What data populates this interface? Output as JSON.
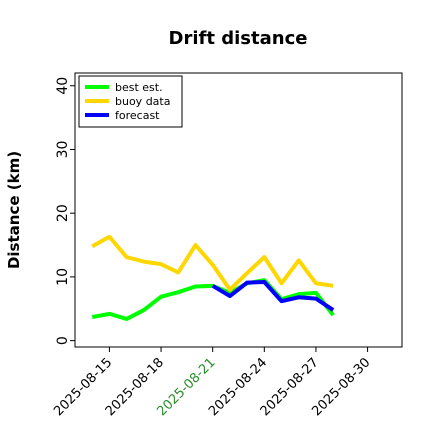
{
  "chart_data": {
    "type": "line",
    "title": "Drift distance",
    "xlabel": "",
    "ylabel": "Distance (km)",
    "xlim": [
      "2025-08-13",
      "2025-09-01"
    ],
    "ylim": [
      -1,
      42
    ],
    "y_ticks": [
      0,
      10,
      20,
      30,
      40
    ],
    "x_tick_labels": [
      "2025-08-15",
      "2025-08-18",
      "2025-08-21",
      "2025-08-24",
      "2025-08-27",
      "2025-08-30"
    ],
    "highlighted_tick": "2025-08-21",
    "highlight_color": "#2a8a2a",
    "grid": false,
    "legend_position": "top-left",
    "series": [
      {
        "name": "best est.",
        "color": "#00ff00",
        "points": [
          [
            "2025-08-14",
            3.7
          ],
          [
            "2025-08-15",
            4.2
          ],
          [
            "2025-08-16",
            3.4
          ],
          [
            "2025-08-17",
            4.8
          ],
          [
            "2025-08-18",
            6.9
          ],
          [
            "2025-08-19",
            7.6
          ],
          [
            "2025-08-20",
            8.5
          ],
          [
            "2025-08-21",
            8.6
          ],
          [
            "2025-08-22",
            7.5
          ],
          [
            "2025-08-23",
            9.0
          ],
          [
            "2025-08-24",
            9.5
          ],
          [
            "2025-08-25",
            6.5
          ],
          [
            "2025-08-26",
            7.3
          ],
          [
            "2025-08-27",
            7.5
          ],
          [
            "2025-08-28",
            4.0
          ]
        ]
      },
      {
        "name": "buoy data",
        "color": "#ffd700",
        "points": [
          [
            "2025-08-14",
            14.8
          ],
          [
            "2025-08-15",
            16.3
          ],
          [
            "2025-08-16",
            13.1
          ],
          [
            "2025-08-17",
            12.4
          ],
          [
            "2025-08-18",
            12.0
          ],
          [
            "2025-08-19",
            10.7
          ],
          [
            "2025-08-20",
            15.0
          ],
          [
            "2025-08-21",
            11.9
          ],
          [
            "2025-08-22",
            8.0
          ],
          [
            "2025-08-23",
            10.6
          ],
          [
            "2025-08-24",
            13.1
          ],
          [
            "2025-08-25",
            9.0
          ],
          [
            "2025-08-26",
            12.6
          ],
          [
            "2025-08-27",
            9.0
          ],
          [
            "2025-08-28",
            8.6
          ]
        ]
      },
      {
        "name": "forecast",
        "color": "#0000ff",
        "points": [
          [
            "2025-08-21",
            8.6
          ],
          [
            "2025-08-22",
            7.0
          ],
          [
            "2025-08-23",
            9.1
          ],
          [
            "2025-08-24",
            9.2
          ],
          [
            "2025-08-25",
            6.2
          ],
          [
            "2025-08-26",
            6.8
          ],
          [
            "2025-08-27",
            6.6
          ],
          [
            "2025-08-28",
            4.8
          ]
        ]
      }
    ]
  }
}
